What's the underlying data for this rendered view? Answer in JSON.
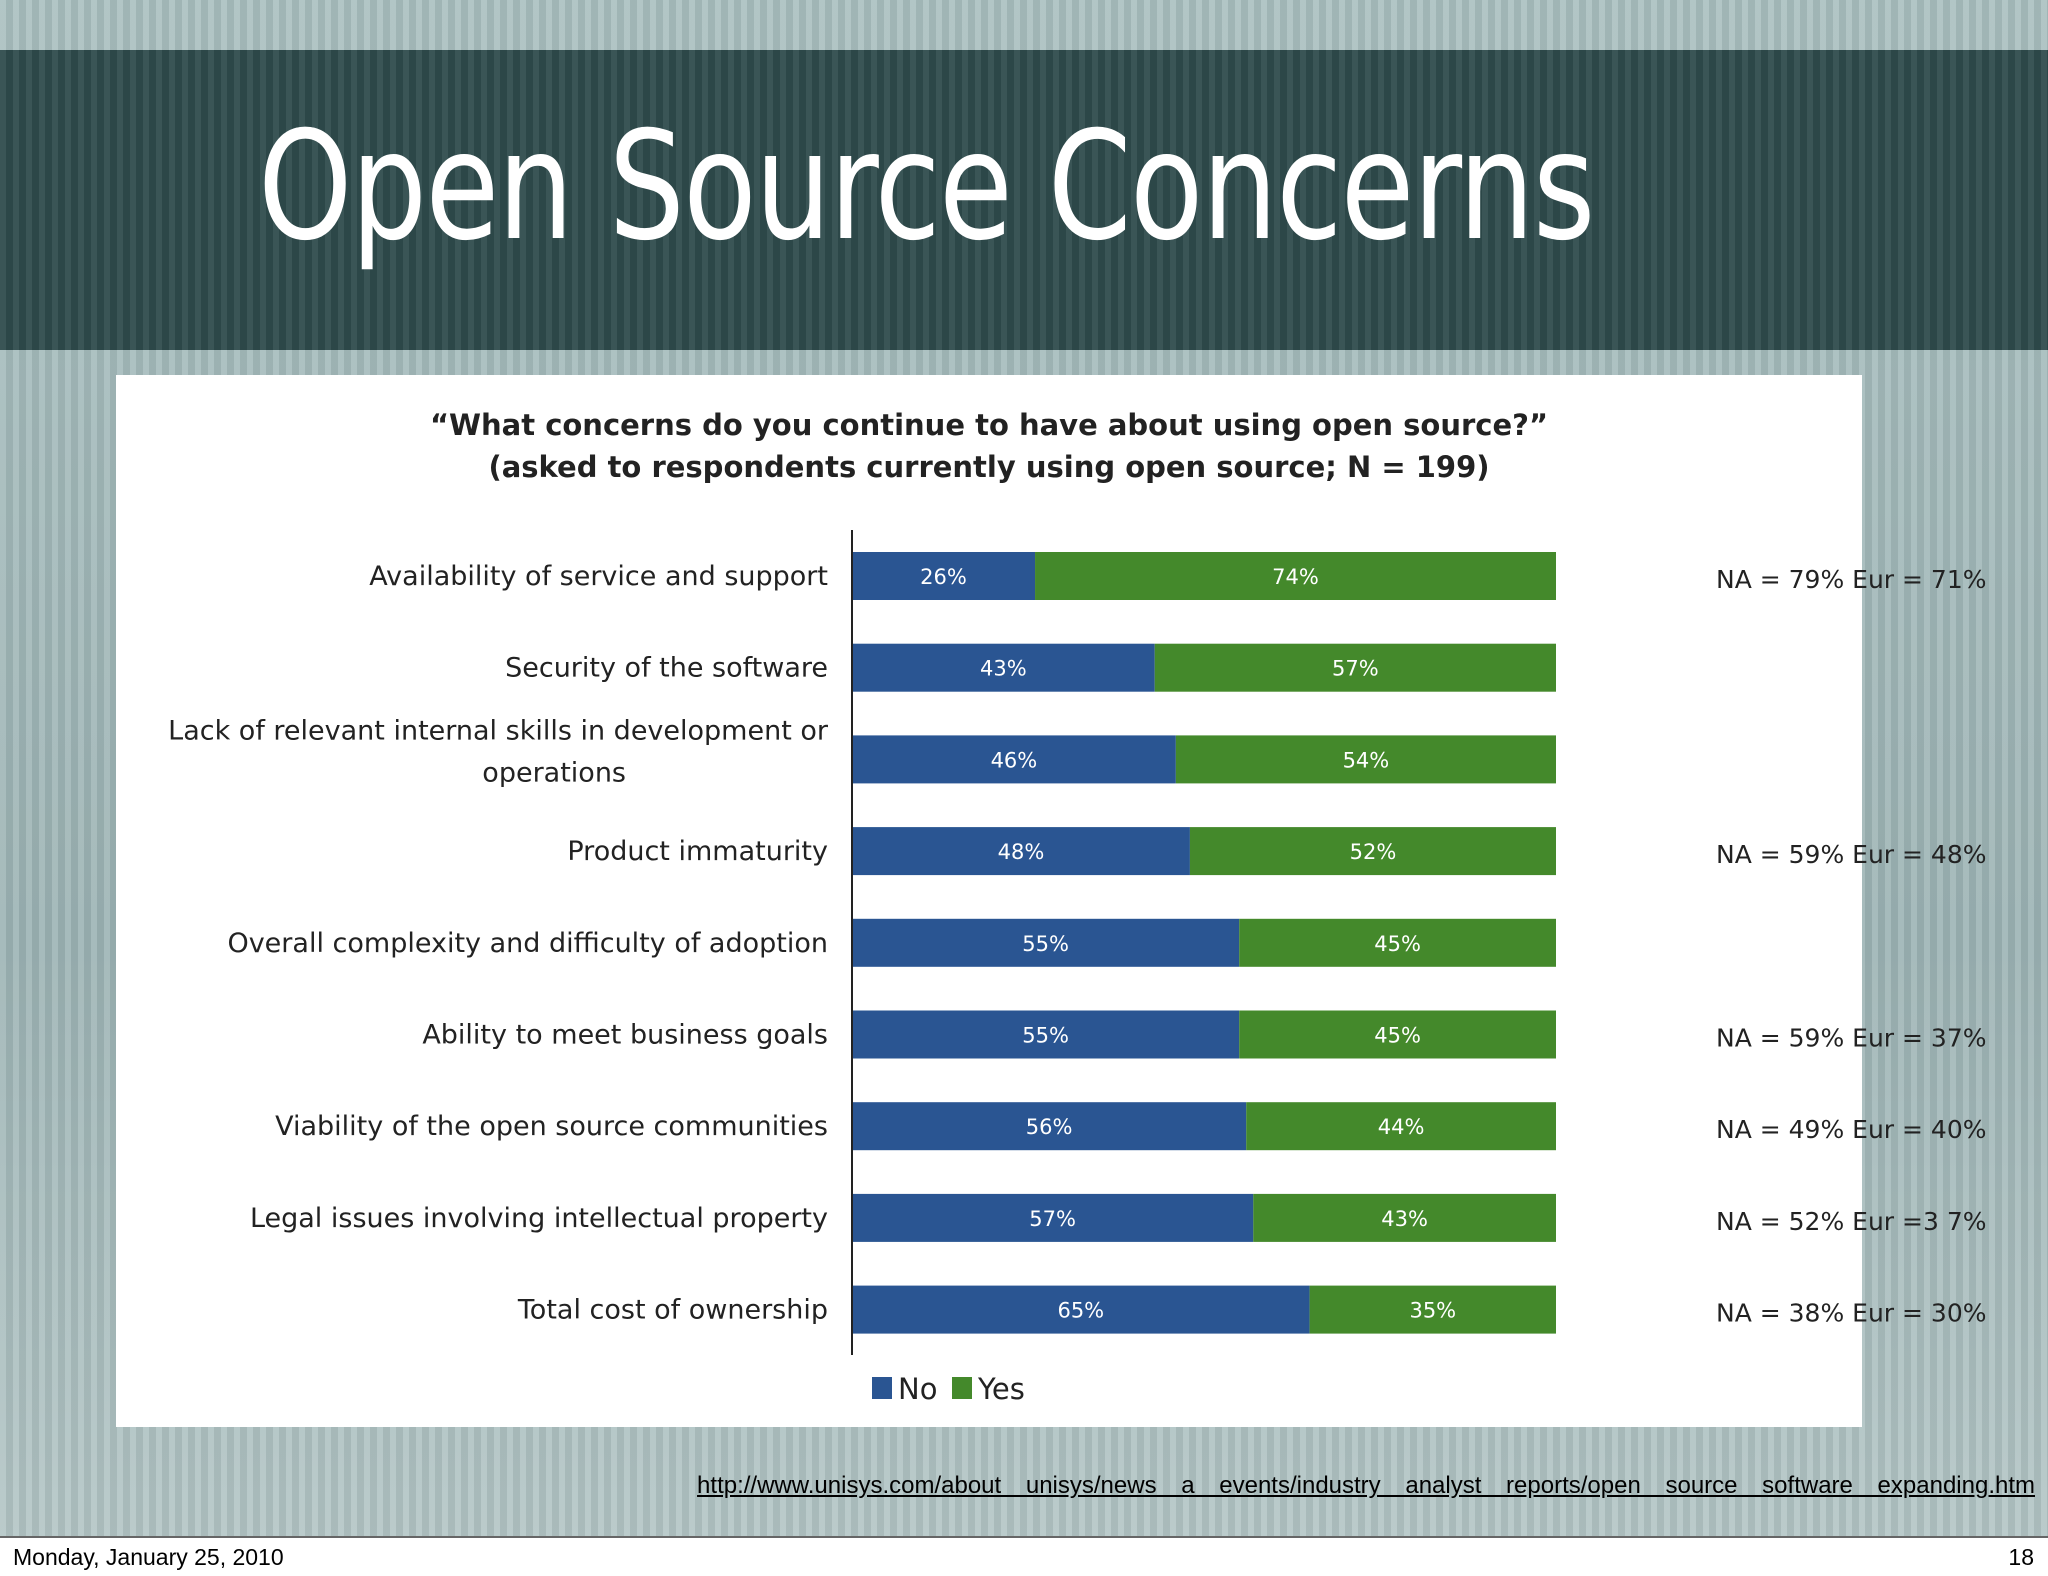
{
  "slide": {
    "title": "Open Source Concerns",
    "source_url": "http://www.unisys.com/about   unisys/news  a  events/industry   analyst   reports/open   source   software   expanding.htm",
    "footer_date": "Monday, January 25, 2010",
    "page_number": "18"
  },
  "chart_data": {
    "type": "bar",
    "orientation": "horizontal",
    "stacked": true,
    "title": "“What concerns do you continue to have about using open source?”",
    "subtitle": "(asked to respondents currently using open source; N = 199)",
    "categories": [
      [
        "Availability of service and support"
      ],
      [
        "Security of the software"
      ],
      [
        "Lack of relevant internal skills in development or",
        "operations"
      ],
      [
        "Product immaturity"
      ],
      [
        "Overall complexity and difficulty of adoption"
      ],
      [
        "Ability to meet business goals"
      ],
      [
        "Viability of the open source communities"
      ],
      [
        "Legal issues involving intellectual property"
      ],
      [
        "Total cost of ownership"
      ]
    ],
    "series": [
      {
        "name": "No",
        "color": "#2a5592",
        "values": [
          26,
          43,
          46,
          48,
          55,
          55,
          56,
          57,
          65
        ]
      },
      {
        "name": "Yes",
        "color": "#44892b",
        "values": [
          74,
          57,
          54,
          52,
          45,
          45,
          44,
          43,
          35
        ]
      }
    ],
    "value_suffix": "%",
    "annotations": [
      "NA = 79% Eur = 71%",
      "",
      "",
      "NA = 59% Eur = 48%",
      "",
      "NA = 59% Eur = 37%",
      "NA = 49% Eur = 40%",
      "NA = 52% Eur =3 7%",
      "NA = 38% Eur = 30%"
    ],
    "legend_position": "bottom",
    "xlim": [
      0,
      100
    ]
  }
}
